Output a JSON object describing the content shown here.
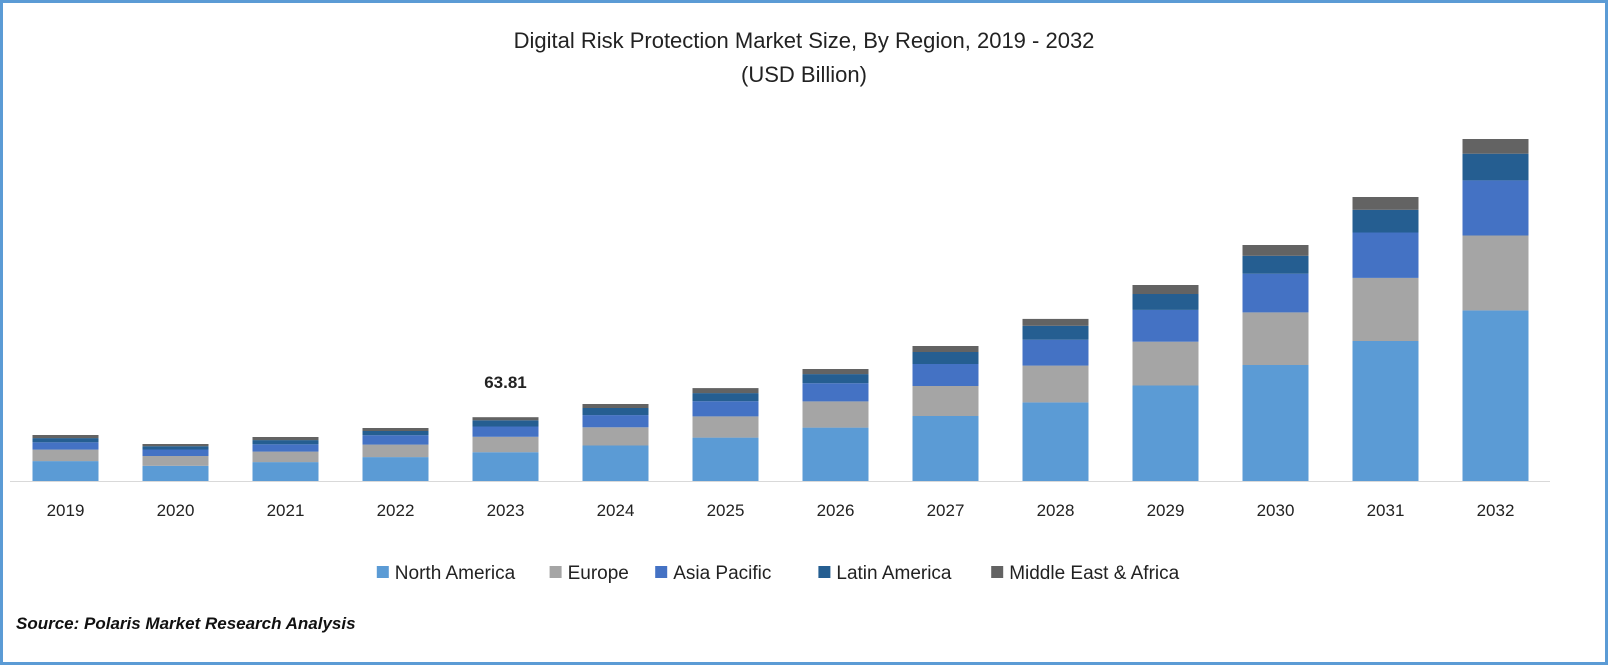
{
  "chart_data": {
    "type": "bar",
    "stacked": true,
    "title": "Digital Risk Protection Market Size, By Region, 2019 - 2032",
    "subtitle": "(USD Billion)",
    "xlabel": "",
    "ylabel": "",
    "ylim": [
      0,
      350
    ],
    "grid": false,
    "legend_position": "bottom",
    "categories": [
      "2019",
      "2020",
      "2021",
      "2022",
      "2023",
      "2024",
      "2025",
      "2026",
      "2027",
      "2028",
      "2029",
      "2030",
      "2031",
      "2032"
    ],
    "series": [
      {
        "name": "North America",
        "color": "#5b9bd5",
        "values": [
          19.9,
          15.2,
          18.9,
          23.9,
          28.8,
          35.5,
          43.4,
          53.4,
          65.0,
          78.6,
          95.5,
          116.0,
          140.0,
          170.6
        ]
      },
      {
        "name": "Europe",
        "color": "#a5a5a5",
        "values": [
          11.5,
          9.8,
          10.5,
          12.5,
          15.4,
          18.2,
          21.2,
          26.2,
          30.0,
          36.8,
          43.8,
          52.6,
          63.1,
          74.9
        ]
      },
      {
        "name": "Asia Pacific",
        "color": "#4472c4",
        "values": [
          7.3,
          6.5,
          7.3,
          9.4,
          10.3,
          12.2,
          15.2,
          18.2,
          22.0,
          25.9,
          31.8,
          38.7,
          45.4,
          55.1
        ]
      },
      {
        "name": "Latin America",
        "color": "#255e91",
        "values": [
          4.2,
          3.3,
          4.2,
          4.2,
          6.2,
          7.1,
          8.1,
          9.1,
          12.0,
          13.9,
          15.9,
          17.9,
          22.7,
          26.7
        ]
      },
      {
        "name": "Middle East & Africa",
        "color": "#636363",
        "values": [
          3.1,
          2.2,
          3.1,
          3.0,
          3.1,
          4.0,
          5.0,
          5.1,
          6.0,
          6.9,
          9.0,
          10.8,
          12.8,
          14.7
        ]
      }
    ],
    "annotations": [
      {
        "category": "2023",
        "text": "63.81"
      }
    ]
  },
  "source": "Source: Polaris Market Research Analysis",
  "frame_color": "#5b9bd5"
}
